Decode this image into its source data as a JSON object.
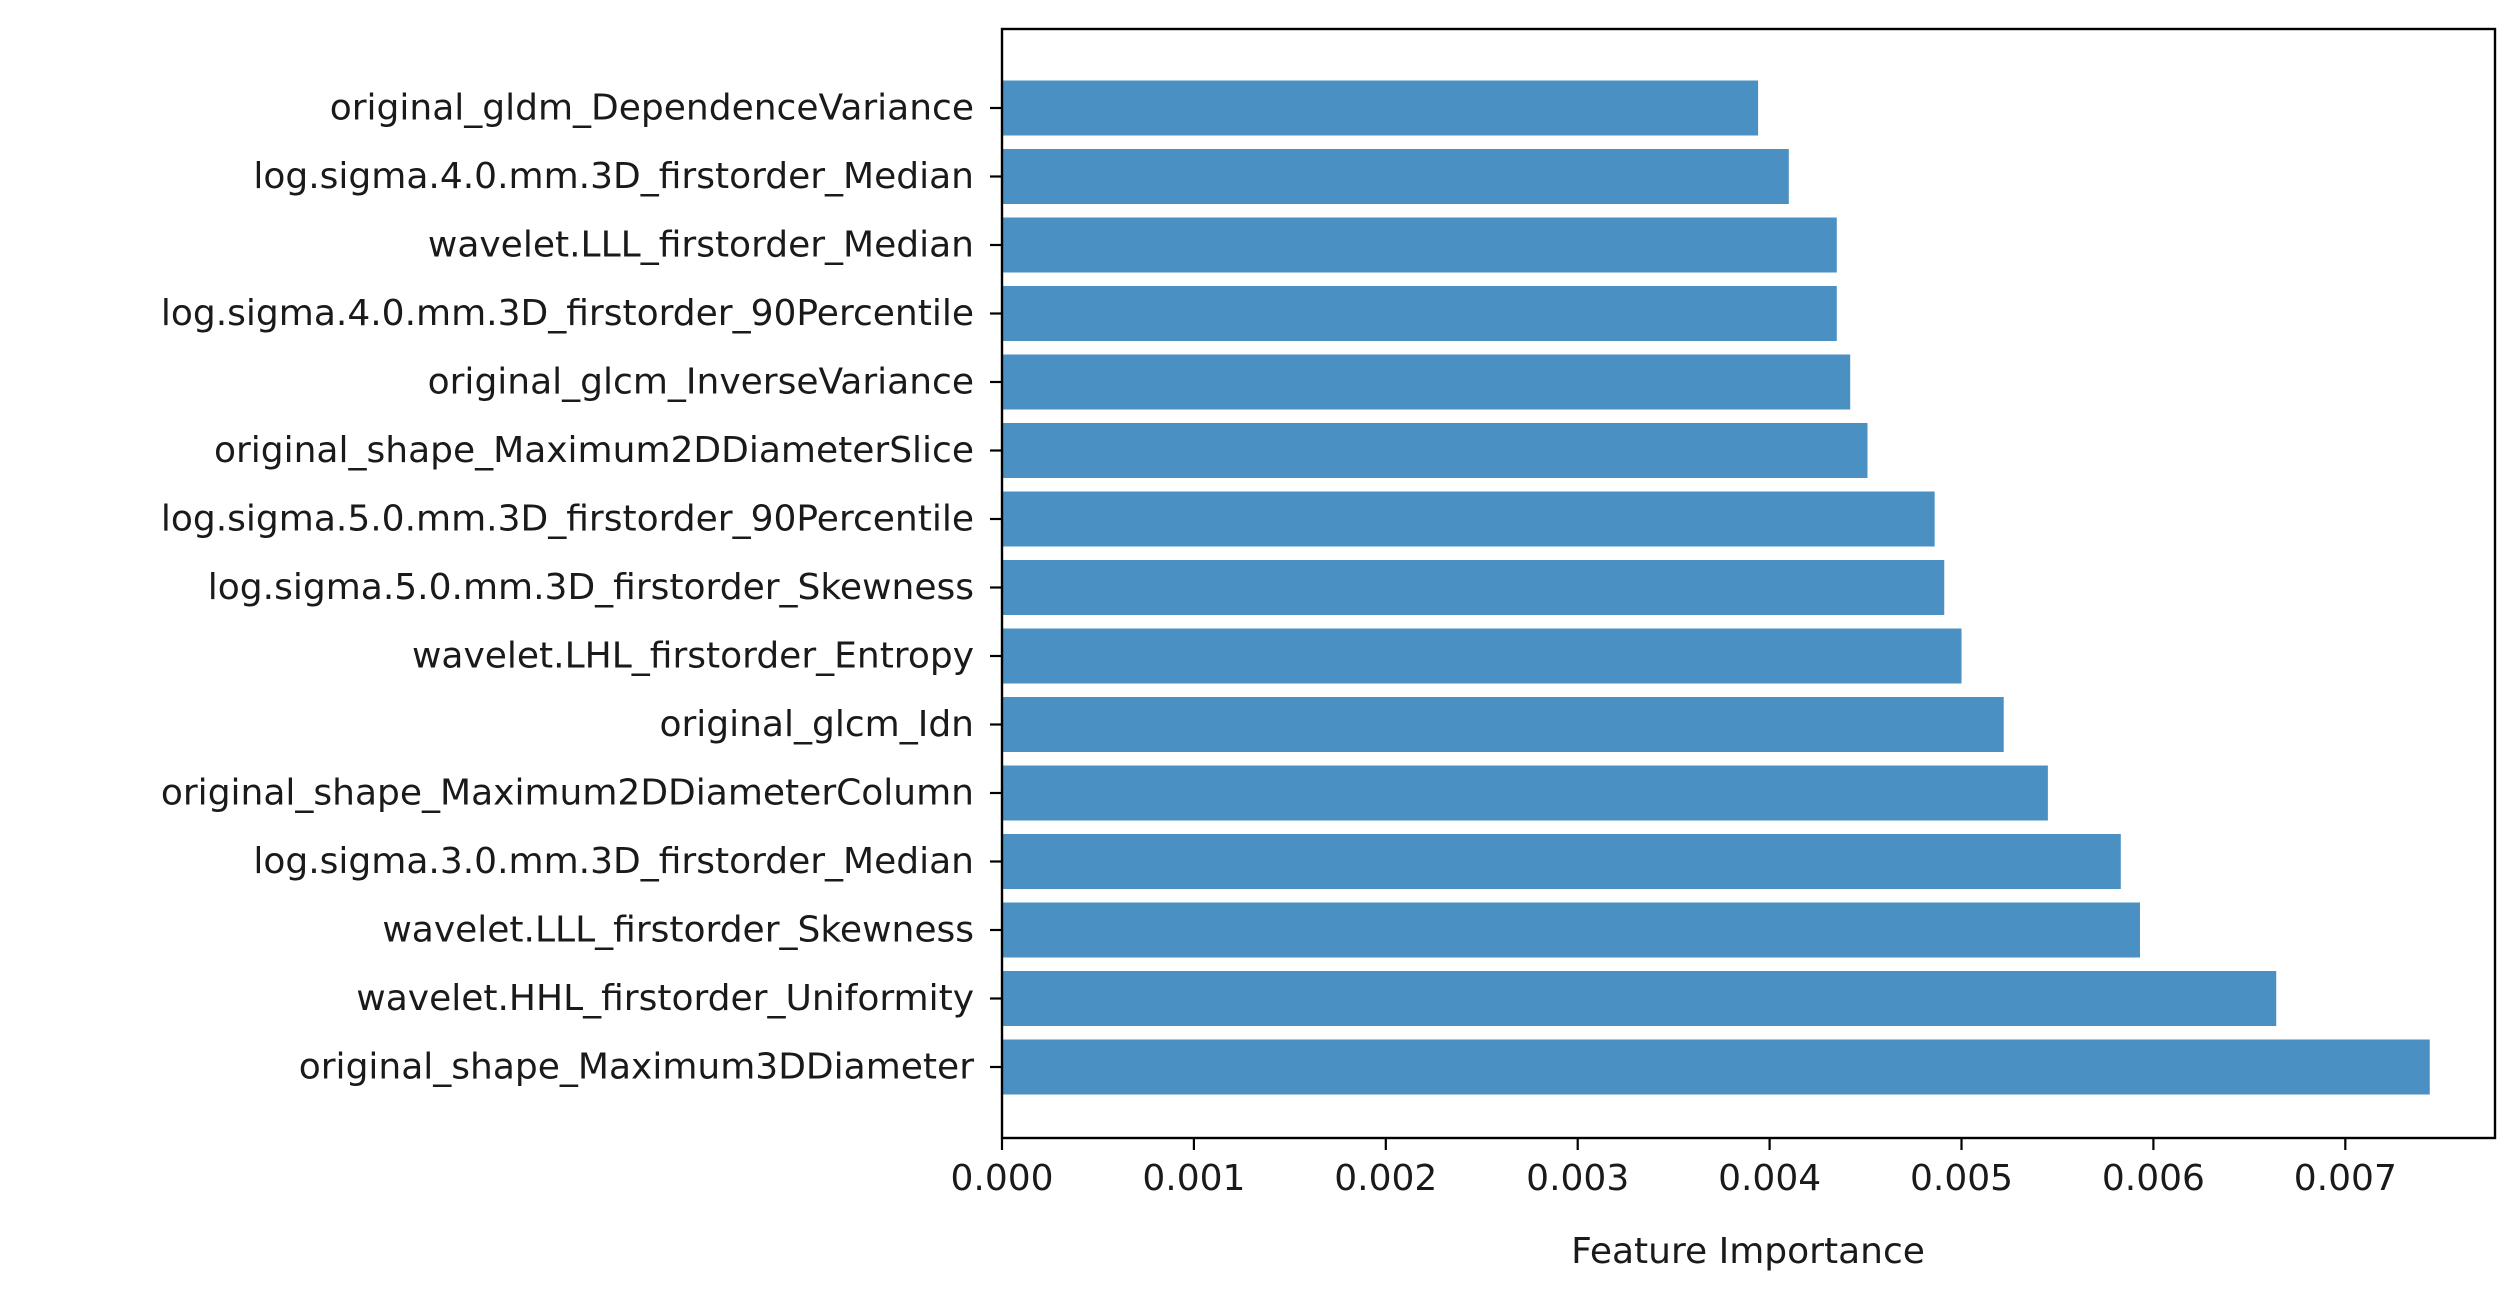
{
  "chart_data": {
    "type": "bar",
    "orientation": "horizontal",
    "xlabel": "Feature Importance",
    "ylabel": "",
    "xlim": [
      0,
      0.00778
    ],
    "x_ticks": [
      "0.000",
      "0.001",
      "0.002",
      "0.003",
      "0.004",
      "0.005",
      "0.006",
      "0.007"
    ],
    "categories": [
      "original_gldm_DependenceVariance",
      "log.sigma.4.0.mm.3D_firstorder_Median",
      "wavelet.LLL_firstorder_Median",
      "log.sigma.4.0.mm.3D_firstorder_90Percentile",
      "original_glcm_InverseVariance",
      "original_shape_Maximum2DDiameterSlice",
      "log.sigma.5.0.mm.3D_firstorder_90Percentile",
      "log.sigma.5.0.mm.3D_firstorder_Skewness",
      "wavelet.LHL_firstorder_Entropy",
      "original_glcm_Idn",
      "original_shape_Maximum2DDiameterColumn",
      "log.sigma.3.0.mm.3D_firstorder_Median",
      "wavelet.LLL_firstorder_Skewness",
      "wavelet.HHL_firstorder_Uniformity",
      "original_shape_Maximum3DDiameter"
    ],
    "values": [
      0.00394,
      0.0041,
      0.00435,
      0.00435,
      0.00442,
      0.00451,
      0.00486,
      0.00491,
      0.005,
      0.00522,
      0.00545,
      0.00583,
      0.00593,
      0.00664,
      0.00744
    ],
    "bar_color": "#4a90c2",
    "grid": false,
    "legend": "none"
  }
}
